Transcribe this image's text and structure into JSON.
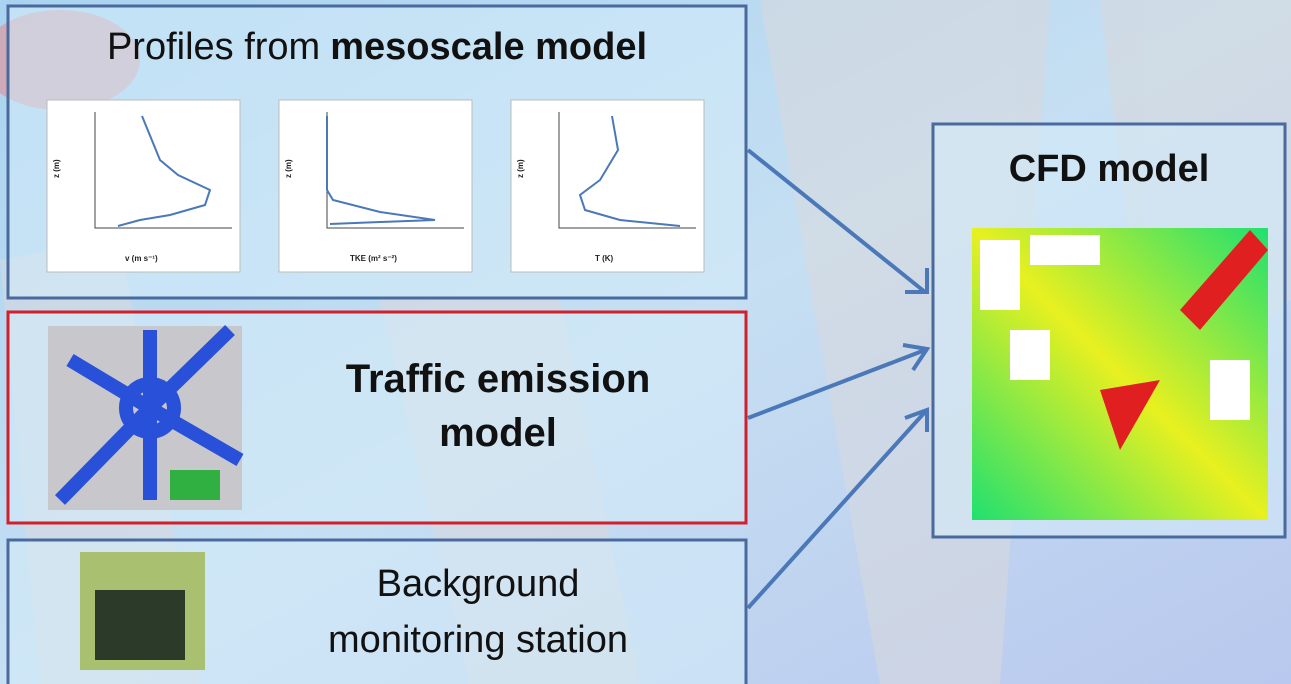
{
  "panels": [
    {
      "title": {
        "plain": "Profiles from",
        "bold": "mesoscale model"
      },
      "plots": [
        {
          "x_label": "v (m s⁻¹)",
          "y_label": "z (m)"
        },
        {
          "x_label": "TKE (m² s⁻²)",
          "y_label": "z (m)"
        },
        {
          "x_label": "T (K)",
          "y_label": "z (m)"
        }
      ]
    },
    {
      "title_lines": [
        "Traffic emission",
        "model"
      ]
    },
    {
      "title_lines": [
        "Background",
        "monitoring station"
      ]
    }
  ],
  "target": {
    "title": "CFD model"
  }
}
